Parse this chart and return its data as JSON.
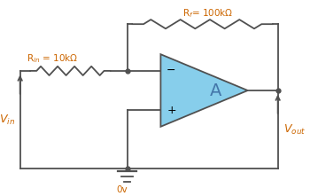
{
  "line_color": "#505050",
  "opamp_fill": "#87CEEB",
  "opamp_stroke": "#505050",
  "label_color": "#CC6600",
  "label_color_blue": "#4477AA",
  "Rin_label": "R$_{in}$ = 10kΩ",
  "Rf_label": "R$_f$= 100kΩ",
  "Vin_label": "V$_{in}$",
  "Vout_label": "V$_{out}$",
  "gnd_label": "0v",
  "minus_label": "−",
  "plus_label": "+",
  "A_label": "A",
  "figsize": [
    3.59,
    2.21
  ],
  "dpi": 100,
  "xlim": [
    0,
    9.5
  ],
  "ylim": [
    0,
    6.5
  ]
}
